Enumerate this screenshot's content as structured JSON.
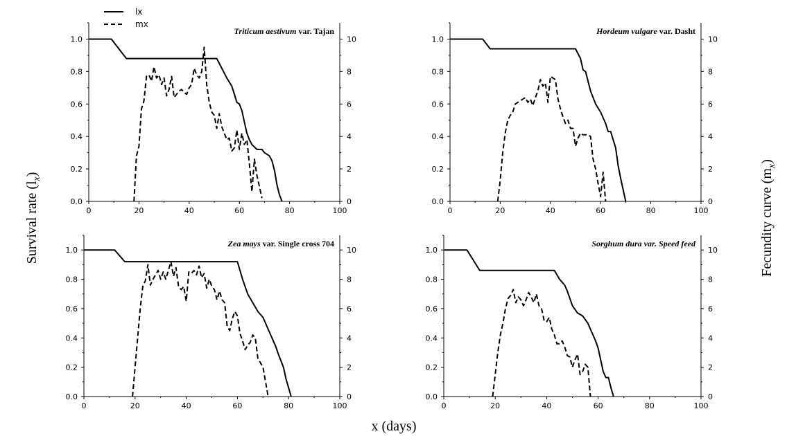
{
  "figure": {
    "ylabel_left": "Survival rate (l",
    "ylabel_left_sub": "x",
    "ylabel_left_end": ")",
    "ylabel_right": "Fecundity curve (m",
    "ylabel_right_sub": "x",
    "ylabel_right_end": ")",
    "xlabel": "x (days)",
    "legend": [
      {
        "label": "lx",
        "style": "solid"
      },
      {
        "label": "mx",
        "style": "dashed"
      }
    ]
  },
  "chart_data": [
    {
      "type": "line",
      "title_italic": "Triticum aestivum",
      "title_rest": " var. Tajan",
      "xlim": [
        0,
        100
      ],
      "ylim_left": [
        0,
        1.1
      ],
      "ylim_right": [
        0,
        11
      ],
      "x_ticks": [
        "0",
        "20",
        "40",
        "60",
        "80",
        "100"
      ],
      "y_ticks_left": [
        "0.0",
        "0.2",
        "0.4",
        "0.6",
        "0.8",
        "1.0"
      ],
      "y_ticks_right": [
        "0",
        "2",
        "4",
        "6",
        "8",
        "10"
      ],
      "series": [
        {
          "name": "lx",
          "axis": "left",
          "style": "solid",
          "x": [
            0,
            9,
            15,
            51,
            55,
            57,
            58,
            59,
            60,
            61,
            62,
            63,
            64,
            65,
            67,
            69,
            70,
            72,
            73,
            74,
            75,
            76,
            77
          ],
          "y": [
            1.0,
            1.0,
            0.88,
            0.88,
            0.76,
            0.71,
            0.66,
            0.61,
            0.6,
            0.56,
            0.49,
            0.42,
            0.38,
            0.35,
            0.32,
            0.32,
            0.3,
            0.28,
            0.25,
            0.19,
            0.1,
            0.04,
            0.0
          ]
        },
        {
          "name": "mx",
          "axis": "right",
          "style": "dashed",
          "x": [
            18,
            19,
            20,
            21,
            22,
            23,
            24,
            25,
            26,
            27,
            28,
            29,
            30,
            31,
            32,
            33,
            34,
            35,
            36,
            37,
            38,
            39,
            40,
            41,
            42,
            43,
            44,
            45,
            46,
            47,
            48,
            49,
            50,
            51,
            52,
            53,
            54,
            55,
            56,
            57,
            58,
            59,
            60,
            61,
            62,
            63,
            64,
            65,
            66,
            67,
            68,
            69
          ],
          "y": [
            0,
            2.8,
            3.4,
            5.7,
            6.2,
            7.7,
            7.8,
            7.4,
            8.3,
            7.6,
            7.8,
            7.2,
            7.6,
            6.5,
            6.9,
            7.7,
            6.4,
            6.6,
            6.8,
            6.9,
            6.7,
            6.6,
            7.0,
            7.2,
            8.2,
            7.8,
            7.6,
            8.0,
            9.5,
            7.2,
            6.1,
            5.5,
            5.3,
            4.5,
            5.4,
            4.6,
            4.2,
            3.8,
            3.9,
            3.1,
            3.3,
            4.4,
            3.2,
            4.2,
            3.5,
            3.8,
            2.3,
            0.6,
            2.6,
            1.6,
            0.9,
            0.2
          ]
        }
      ]
    },
    {
      "type": "line",
      "title_italic": "Hordeum vulgare",
      "title_rest": " var. Dasht",
      "xlim": [
        0,
        100
      ],
      "ylim_left": [
        0,
        1.1
      ],
      "ylim_right": [
        0,
        11
      ],
      "x_ticks": [
        "0",
        "20",
        "40",
        "60",
        "80",
        "100"
      ],
      "y_ticks_left": [
        "0.0",
        "0.2",
        "0.4",
        "0.6",
        "0.8",
        "1.0"
      ],
      "y_ticks_right": [
        "0",
        "2",
        "4",
        "6",
        "8",
        "10"
      ],
      "series": [
        {
          "name": "lx",
          "axis": "left",
          "style": "solid",
          "x": [
            0,
            13,
            16,
            50,
            52,
            53,
            54,
            56,
            58,
            60,
            62,
            63,
            64,
            65,
            66,
            67,
            68,
            69,
            70
          ],
          "y": [
            1.0,
            1.0,
            0.94,
            0.94,
            0.88,
            0.81,
            0.8,
            0.68,
            0.6,
            0.55,
            0.48,
            0.43,
            0.43,
            0.38,
            0.33,
            0.22,
            0.14,
            0.07,
            0.0
          ]
        },
        {
          "name": "mx",
          "axis": "right",
          "style": "dashed",
          "x": [
            19,
            20,
            21,
            22,
            23,
            24,
            25,
            26,
            27,
            28,
            29,
            30,
            31,
            32,
            33,
            34,
            35,
            36,
            37,
            38,
            39,
            40,
            41,
            42,
            43,
            44,
            45,
            46,
            47,
            48,
            49,
            50,
            51,
            52,
            53,
            54,
            55,
            56,
            57,
            58,
            59,
            60,
            61,
            62
          ],
          "y": [
            0,
            1.3,
            3.0,
            4.2,
            5.0,
            5.3,
            5.5,
            6.0,
            6.1,
            6.2,
            6.3,
            6.4,
            6.1,
            6.3,
            5.9,
            6.4,
            6.8,
            7.5,
            7.1,
            7.3,
            6.1,
            7.7,
            7.6,
            7.5,
            6.3,
            5.7,
            5.2,
            4.8,
            5.0,
            4.5,
            4.5,
            3.4,
            3.9,
            4.2,
            4.1,
            4.1,
            4.1,
            4.0,
            2.6,
            2.0,
            1.1,
            0.3,
            1.8,
            0.0
          ]
        }
      ]
    },
    {
      "type": "line",
      "title_italic": "Zea mays",
      "title_rest": " var. Single cross 704",
      "xlim": [
        0,
        100
      ],
      "ylim_left": [
        0,
        1.1
      ],
      "ylim_right": [
        0,
        11
      ],
      "x_ticks": [
        "0",
        "20",
        "40",
        "60",
        "80",
        "100"
      ],
      "y_ticks_left": [
        "0.0",
        "0.2",
        "0.4",
        "0.6",
        "0.8",
        "1.0"
      ],
      "y_ticks_right": [
        "0",
        "2",
        "4",
        "6",
        "8",
        "10"
      ],
      "series": [
        {
          "name": "lx",
          "axis": "left",
          "style": "solid",
          "x": [
            0,
            12,
            16,
            60,
            62,
            64,
            66,
            68,
            70,
            72,
            74,
            75,
            76,
            78,
            79,
            80,
            81
          ],
          "y": [
            1.0,
            1.0,
            0.92,
            0.92,
            0.8,
            0.7,
            0.64,
            0.58,
            0.54,
            0.46,
            0.38,
            0.34,
            0.29,
            0.2,
            0.12,
            0.06,
            0.0
          ]
        },
        {
          "name": "mx",
          "axis": "right",
          "style": "dashed",
          "x": [
            19,
            20,
            21,
            22,
            23,
            24,
            25,
            26,
            27,
            28,
            29,
            30,
            31,
            32,
            33,
            34,
            35,
            36,
            37,
            38,
            39,
            40,
            41,
            42,
            43,
            44,
            45,
            46,
            47,
            48,
            49,
            50,
            51,
            52,
            53,
            54,
            55,
            56,
            57,
            58,
            59,
            60,
            61,
            62,
            63,
            64,
            65,
            66,
            67,
            68,
            69,
            70,
            71,
            72
          ],
          "y": [
            0,
            2.0,
            4.0,
            6.0,
            7.5,
            7.9,
            9.0,
            7.6,
            8.0,
            8.3,
            8.6,
            8.0,
            8.5,
            8.0,
            8.6,
            9.2,
            8.2,
            8.8,
            7.5,
            7.3,
            7.5,
            6.5,
            8.5,
            8.4,
            8.6,
            8.3,
            8.9,
            8.1,
            8.4,
            7.4,
            8.0,
            7.5,
            7.3,
            6.6,
            7.2,
            6.6,
            6.4,
            4.8,
            4.5,
            5.3,
            5.8,
            5.5,
            4.3,
            3.8,
            3.2,
            3.5,
            3.7,
            4.2,
            4.0,
            2.6,
            2.3,
            2.0,
            1.0,
            0.0
          ]
        }
      ]
    },
    {
      "type": "line",
      "title_italic": "Sorghum dura var. Speed feed",
      "title_rest": "",
      "xlim": [
        0,
        100
      ],
      "ylim_left": [
        0,
        1.1
      ],
      "ylim_right": [
        0,
        11
      ],
      "x_ticks": [
        "0",
        "20",
        "40",
        "60",
        "80",
        "100"
      ],
      "y_ticks_left": [
        "0.0",
        "0.2",
        "0.4",
        "0.6",
        "0.8",
        "1.0"
      ],
      "y_ticks_right": [
        "0",
        "2",
        "4",
        "6",
        "8",
        "10"
      ],
      "series": [
        {
          "name": "lx",
          "axis": "left",
          "style": "solid",
          "x": [
            0,
            9,
            14,
            43,
            45,
            46,
            47,
            48,
            49,
            50,
            52,
            54,
            56,
            58,
            59,
            60,
            61,
            62,
            63,
            64,
            65,
            66
          ],
          "y": [
            1.0,
            1.0,
            0.86,
            0.86,
            0.8,
            0.78,
            0.76,
            0.72,
            0.67,
            0.62,
            0.57,
            0.55,
            0.5,
            0.42,
            0.38,
            0.33,
            0.25,
            0.17,
            0.13,
            0.13,
            0.06,
            0.0
          ]
        },
        {
          "name": "mx",
          "axis": "right",
          "style": "dashed",
          "x": [
            19,
            20,
            21,
            22,
            23,
            24,
            25,
            26,
            27,
            28,
            29,
            30,
            31,
            32,
            33,
            34,
            35,
            36,
            37,
            38,
            39,
            40,
            41,
            42,
            43,
            44,
            45,
            46,
            47,
            48,
            49,
            50,
            51,
            52,
            53,
            54,
            55,
            56,
            57
          ],
          "y": [
            0,
            1.5,
            3.0,
            4.2,
            5.0,
            6.0,
            6.7,
            6.9,
            7.3,
            6.4,
            6.8,
            6.6,
            6.2,
            6.6,
            7.1,
            6.8,
            6.4,
            7.0,
            6.2,
            6.0,
            5.2,
            5.1,
            5.4,
            4.6,
            4.2,
            3.6,
            3.6,
            3.8,
            3.4,
            2.8,
            2.7,
            2.0,
            2.5,
            2.9,
            1.5,
            1.7,
            2.2,
            2.0,
            0.0
          ]
        }
      ]
    }
  ]
}
